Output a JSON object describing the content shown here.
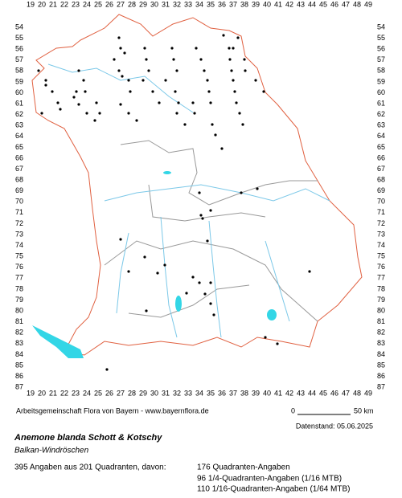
{
  "map": {
    "columns": [
      19,
      20,
      21,
      22,
      23,
      24,
      25,
      26,
      27,
      28,
      29,
      30,
      31,
      32,
      33,
      34,
      35,
      36,
      37,
      38,
      39,
      40,
      41,
      42,
      43,
      44,
      45,
      46,
      47,
      48,
      49
    ],
    "rows": [
      54,
      55,
      56,
      57,
      58,
      59,
      60,
      61,
      62,
      63,
      64,
      65,
      66,
      67,
      68,
      69,
      70,
      71,
      72,
      73,
      74,
      75,
      76,
      77,
      78,
      79,
      80,
      81,
      82,
      83,
      84,
      85,
      86,
      87
    ],
    "credit": "Arbeitsgemeinschaft Flora von Bayern - www.bayernflora.de",
    "scale_start": "0",
    "scale_end": "50 km",
    "date": "Datenstand: 05.06.2025",
    "species": "Anemone blanda Schott & Kotschy",
    "common_name": "Balkan-Windröschen",
    "summary": "395 Angaben aus 201 Quadranten, davon:",
    "breakdown": [
      "176 Quadranten-Angaben",
      "96 1/4-Quadranten-Angaben (1/16 MTB)",
      "110 1/16-Quadranten-Angaben (1/64 MTB)"
    ]
  }
}
